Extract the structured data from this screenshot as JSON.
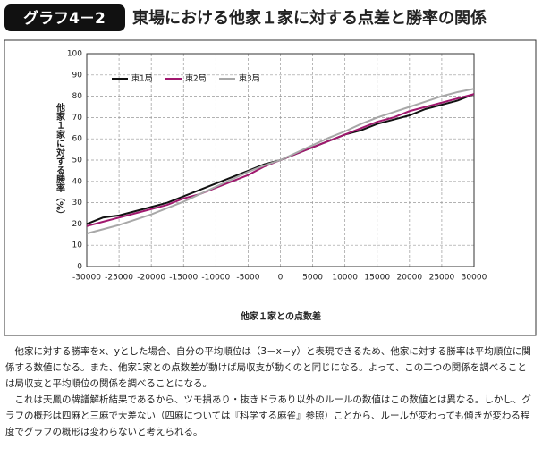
{
  "header": {
    "label": "グラフ4－2",
    "title": "東場における他家１家に対する点差と勝率の関係"
  },
  "chart_data": {
    "type": "line",
    "xlabel": "他家１家との点数差",
    "ylabel": "他家１家に対する勝率（%）",
    "x": [
      -30000,
      -27500,
      -25000,
      -22500,
      -20000,
      -17500,
      -15000,
      -12500,
      -10000,
      -7500,
      -5000,
      -2500,
      0,
      2500,
      5000,
      7500,
      10000,
      12500,
      15000,
      17500,
      20000,
      22500,
      25000,
      27500,
      30000
    ],
    "series": [
      {
        "name": "東1局",
        "color": "#111111",
        "values": [
          20,
          23,
          24,
          26,
          28,
          30,
          33,
          36,
          39,
          42,
          45,
          48,
          50,
          53,
          56,
          59,
          62,
          64,
          67,
          69,
          71,
          74,
          76,
          78,
          81
        ]
      },
      {
        "name": "東2局",
        "color": "#a0186e",
        "values": [
          19,
          21,
          23,
          25,
          27,
          29,
          32,
          34,
          37,
          40,
          43,
          47,
          50,
          53,
          56,
          59,
          62,
          65,
          68,
          70,
          73,
          75,
          77,
          79,
          81
        ]
      },
      {
        "name": "東3局",
        "color": "#a8a8a8",
        "values": [
          15.5,
          17.5,
          19.5,
          22,
          24.5,
          27.5,
          30.5,
          34,
          37.5,
          41,
          44.5,
          47.5,
          50,
          53.5,
          57,
          60.5,
          63.5,
          67,
          70,
          72.5,
          75,
          77.5,
          80,
          82,
          83.5
        ]
      }
    ],
    "xlim": [
      -30000,
      30000
    ],
    "xticks": [
      -30000,
      -25000,
      -20000,
      -15000,
      -10000,
      -5000,
      0,
      5000,
      10000,
      15000,
      20000,
      25000,
      30000
    ],
    "ylim": [
      0,
      100
    ],
    "yticks": [
      0,
      10,
      20,
      30,
      40,
      50,
      60,
      70,
      80,
      90,
      100
    ],
    "grid": true,
    "legend": "top-left"
  },
  "body": [
    "他家に対する勝率をx、yとした場合、自分の平均順位は（3－x－y）と表現できるため、他家に対する勝率は平均順位に関係する数値になる。また、他家1家との点数差が動けば局収支が動くのと同じになる。よって、この二つの関係を調べることは局収支と平均順位の関係を調べることになる。",
    "これは天鳳の牌譜解析結果であるから、ツモ損あり・抜きドラあり以外のルールの数値はこの数値とは異なる。しかし、グラフの概形は四麻と三麻で大差ない（四麻については『科学する麻雀』参照）ことから、ルールが変わっても傾きが変わる程度でグラフの概形は変わらないと考えられる。"
  ]
}
